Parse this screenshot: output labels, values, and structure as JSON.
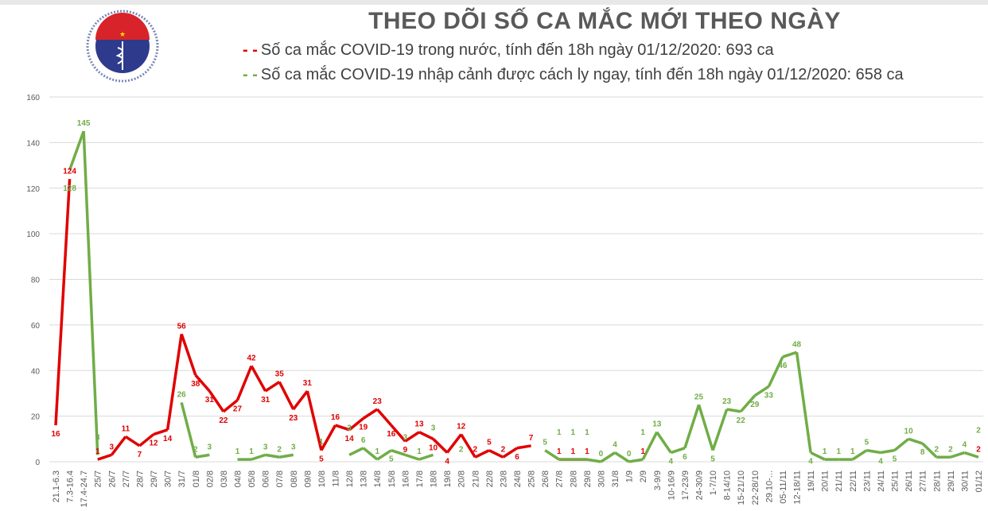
{
  "header": {
    "title": "THEO DÕI SỐ CA MẮC MỚI THEO NGÀY",
    "logo_text": "BỘ Y TẾ · MINISTRY OF HEALTH"
  },
  "chart_data": {
    "type": "line",
    "title": "THEO DÕI SỐ CA MẮC MỚI THEO NGÀY",
    "xlabel": "",
    "ylabel": "",
    "ylim": [
      0,
      160
    ],
    "yticks": [
      0,
      20,
      40,
      60,
      80,
      100,
      120,
      140,
      160
    ],
    "grid": true,
    "legend_position": "top",
    "data_labels": true,
    "categories": [
      "21.1-6.3",
      "7.3-16.4",
      "17.4-24.7",
      "25/7",
      "26/7",
      "27/7",
      "28/7",
      "29/7",
      "30/7",
      "31/7",
      "01/8",
      "02/8",
      "03/8",
      "04/8",
      "05/8",
      "06/8",
      "07/8",
      "08/8",
      "09/8",
      "10/8",
      "11/8",
      "12/8",
      "13/8",
      "14/8",
      "15/8",
      "16/8",
      "17/8",
      "18/8",
      "19/8",
      "20/8",
      "21/8",
      "22/8",
      "23/8",
      "24/8",
      "25/8",
      "26/8",
      "27/8",
      "28/8",
      "29/8",
      "30/8",
      "31/8",
      "1/9",
      "2/9",
      "3-9/9",
      "10-16/9",
      "17-23/9",
      "24-30/9",
      "1-7/10",
      "8-14/10",
      "15-21/10",
      "22-28/10",
      "29.10-...",
      "05-11/11",
      "12-18/11",
      "19/11",
      "20/11",
      "21/11",
      "22/11",
      "23/11",
      "24/11",
      "25/11",
      "26/11",
      "27/11",
      "28/11",
      "29/11",
      "30/11",
      "01/12"
    ],
    "series": [
      {
        "name": "Số ca mắc COVID-19 trong nước, tính đến 18h ngày 01/12/2020: 693 ca",
        "color": "#e00000",
        "values": [
          16,
          124,
          null,
          1,
          3,
          11,
          7,
          12,
          14,
          56,
          38,
          31,
          22,
          27,
          42,
          31,
          35,
          23,
          31,
          5,
          16,
          14,
          19,
          23,
          16,
          9,
          13,
          10,
          4,
          12,
          2,
          5,
          2,
          6,
          7,
          null,
          1,
          1,
          1,
          null,
          null,
          null,
          1,
          null,
          null,
          null,
          null,
          null,
          null,
          null,
          null,
          null,
          null,
          null,
          null,
          null,
          null,
          null,
          null,
          null,
          null,
          null,
          null,
          null,
          null,
          null,
          2
        ]
      },
      {
        "name": "Số ca mắc COVID-19 nhập cảnh được cách ly ngay, tính đến 18h ngày 01/12/2020: 658 ca",
        "color": "#70ad47",
        "values": [
          null,
          128,
          145,
          3,
          null,
          null,
          null,
          null,
          null,
          26,
          2,
          3,
          null,
          1,
          1,
          3,
          2,
          3,
          null,
          1,
          null,
          3,
          6,
          1,
          5,
          3,
          1,
          3,
          null,
          2,
          null,
          null,
          null,
          null,
          null,
          5,
          1,
          1,
          1,
          0,
          4,
          0,
          1,
          13,
          4,
          6,
          25,
          5,
          23,
          22,
          29,
          33,
          46,
          48,
          4,
          1,
          1,
          1,
          5,
          4,
          5,
          10,
          8,
          2,
          2,
          4,
          2
        ]
      }
    ]
  }
}
